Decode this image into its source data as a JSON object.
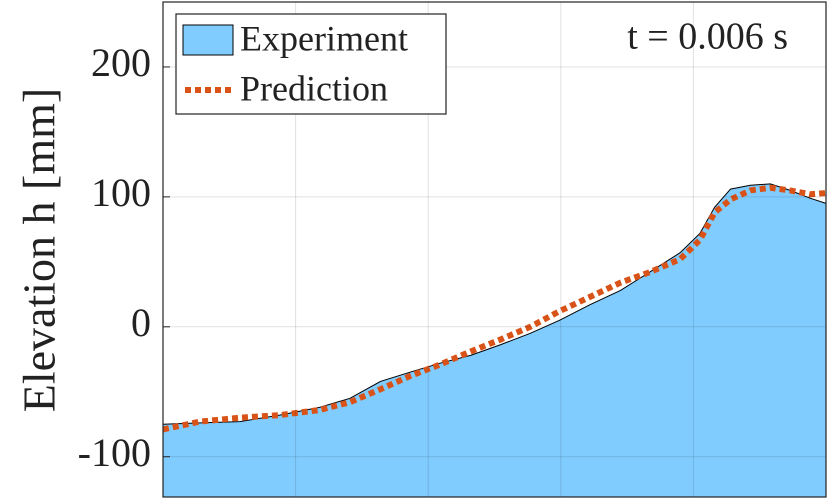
{
  "chart_data": {
    "type": "area",
    "annotation": "t = 0.006 s",
    "y_label": "Elevation h [mm]",
    "x": [
      0,
      0.28,
      0.58,
      0.88,
      1.18,
      1.41,
      1.64,
      1.86,
      2.09,
      2.32,
      2.54,
      2.77,
      2.99,
      3.22,
      3.45,
      3.67,
      3.9,
      4.05,
      4.16,
      4.28,
      4.43,
      4.58,
      4.73,
      4.88,
      5.0
    ],
    "series": [
      {
        "name": "Experiment",
        "color": "#80ccff",
        "style": "area",
        "values": [
          -75,
          -74,
          -73,
          -68,
          -62,
          -55,
          -42,
          -35,
          -28,
          -22,
          -14,
          -5,
          5,
          17,
          28,
          42,
          57,
          72,
          92,
          106,
          109,
          110,
          105,
          99,
          95
        ]
      },
      {
        "name": "Prediction",
        "color": "#d95319",
        "style": "dotted",
        "values": [
          -79,
          -73,
          -70,
          -68,
          -64,
          -58,
          -48,
          -38,
          -29,
          -19,
          -10,
          0,
          12,
          23,
          34,
          42,
          52,
          67,
          88,
          98,
          105,
          107,
          105,
          102,
          103
        ]
      }
    ],
    "xlim": [
      0,
      5
    ],
    "xticks": [
      1,
      2,
      3,
      4
    ],
    "ylim": [
      -131,
      250
    ],
    "yticks": [
      -100,
      0,
      100,
      200
    ],
    "grid": true,
    "legend": "upper-left"
  }
}
